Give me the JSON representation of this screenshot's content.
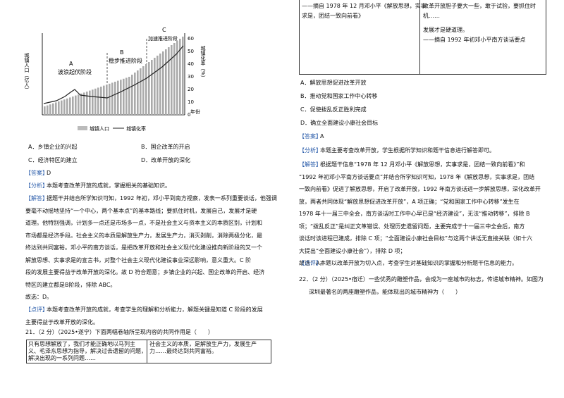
{
  "figure": {
    "label_a": "A",
    "stage_a": "波浪起伏阶段",
    "label_b": "B",
    "stage_b": "稳步推进阶段",
    "label_c": "C",
    "stage_c": "加速推进阶段",
    "y_left": "城镇人口（亿人）",
    "y_right": "城镇化率（%）",
    "y_right_ticks": [
      "0",
      "10",
      "20",
      "30",
      "40",
      "50",
      "60"
    ],
    "x_unit": "年份",
    "legend": [
      "城镇人口",
      "城镇化率"
    ]
  },
  "q20": {
    "options": [
      "A．乡镇企业的兴起",
      "B．国企改革的开启",
      "C．经济特区的建立",
      "D．改革开放的深化"
    ],
    "answer": {
      "label": "【答案】",
      "text": "D"
    },
    "analysis": {
      "label": "【分析】",
      "text": "本题考查改革开放的成就，掌握相关的基础知识。"
    },
    "solution": {
      "label": "【解答】",
      "lines": [
        "据题干并结合所学知识可知，1992 年初，邓小平到南方视察，发表一系列重要谈话，他强调",
        "要毫不动摇地坚持“一个中心，两个基本点”的基本路线；要抓住时机，发展自己，发展才是硬",
        "道理。他特别强调，计划多一点还是市场多一点，不是社会主义与资本主义的本质区别，计划和",
        "市场都是经济手段。社会主义的本质是解放生产力，发展生产力，消灭剥削，消除两极分化，最",
        "终达到共同富裕。邓小平的南方谈话，是把改革开放和社会主义现代化建设推向新阶段的又一个",
        "解放思想、实事求是的宣言书，对整个社会主义现代化建设事业深远影响，意义重大。C 阶",
        "段的发展主要得益于改革开放的深化。故 D 符合题意；乡镇企业的兴起、国企改革的开启、经济",
        "特区的建立都是B阶段，排除 ABC。",
        "故选：D。"
      ]
    },
    "comment": {
      "label": "【点评】",
      "lines": [
        "本题考查改革开放的成就，考查学生的理解和分析能力，解题关键是知道 C 阶段的发展",
        "主要得益于改革开放的深化。"
      ]
    }
  },
  "q21": {
    "stem": "21．（2 分）（2025•遂宁）下面两幅卷轴所呈现内容的共同作用是（　　）",
    "scroll_left": [
      "只有思想解放了，我们才能正确地以马列主",
      "义、毛泽东思想为指导，解决过去遗留的问题，",
      "解决出现的一系列问题……",
      "——摘自 1978 年 12 月邓小平《解放思想，实事",
      "求是，团结一致向前看》"
    ],
    "scroll_right": [
      "社会主义的本质，是解放生产力，发展生产",
      "力……最终达到共同富裕。",
      "改革开放胆子要大一些，敢于试验，要抓住时",
      "机……",
      "发展才是硬道理。",
      "——摘自 1992 年初邓小平南方谈话要点"
    ],
    "options": [
      "A．解放思想促进改革开放",
      "B．推动党和国家工作中心转移",
      "C．促使拨乱反正胜利完成",
      "D．确立全面建设小康社会目标"
    ],
    "answer": {
      "label": "【答案】",
      "text": "A"
    },
    "analysis": {
      "label": "【分析】",
      "text": "本题主要考查改革开放，学生根据所学知识和题干信息进行解答即可。"
    },
    "solution": {
      "label": "【解答】",
      "lines": [
        "根据题干信息“1978 年 12 月邓小平《解放思想，实事求是，团结一致向前看》”和",
        "“1992 年初邓小平南方谈话要点”并结合所学知识可知，1978 年《解放思想，实事求是，团结",
        "一致向前看》促进了解放思想，开启了改革开放，1992 年南方谈话进一步解放思想，深化改革开",
        "放，两者共同体现“解放思想促进改革开放”，A 项正确；“党和国家工作中心转移”发生在",
        "1978 年十一届三中全会，南方谈话时工作中心早已是“经济建设”，无法“推动转移”，排除 B",
        "项；“拨乱反正”是纠正文革错误、处理历史遗留问题，主要完成于十一届三中全会后，南方",
        "谈话时该进程已建成，排除 C 项；“全面建设小康社会目标”与这两个讲话无直接关联（如十六",
        "大提出“全面建设小康社会”），排除 D 项；",
        "故选：A。"
      ]
    },
    "comment": {
      "label": "【点评】",
      "text": "本题以改革开放为切入点，考查学生对基础知识的掌握和分析题干信息的能力。"
    }
  },
  "q22": {
    "lines": [
      "22．（2 分）（2025•宿迁）一些优秀的雕塑作品，会成为一座城市的标志，传递城市精神。如图为",
      "深圳最著名的两座雕塑作品，能体现出的城市精神为（　　）"
    ]
  }
}
